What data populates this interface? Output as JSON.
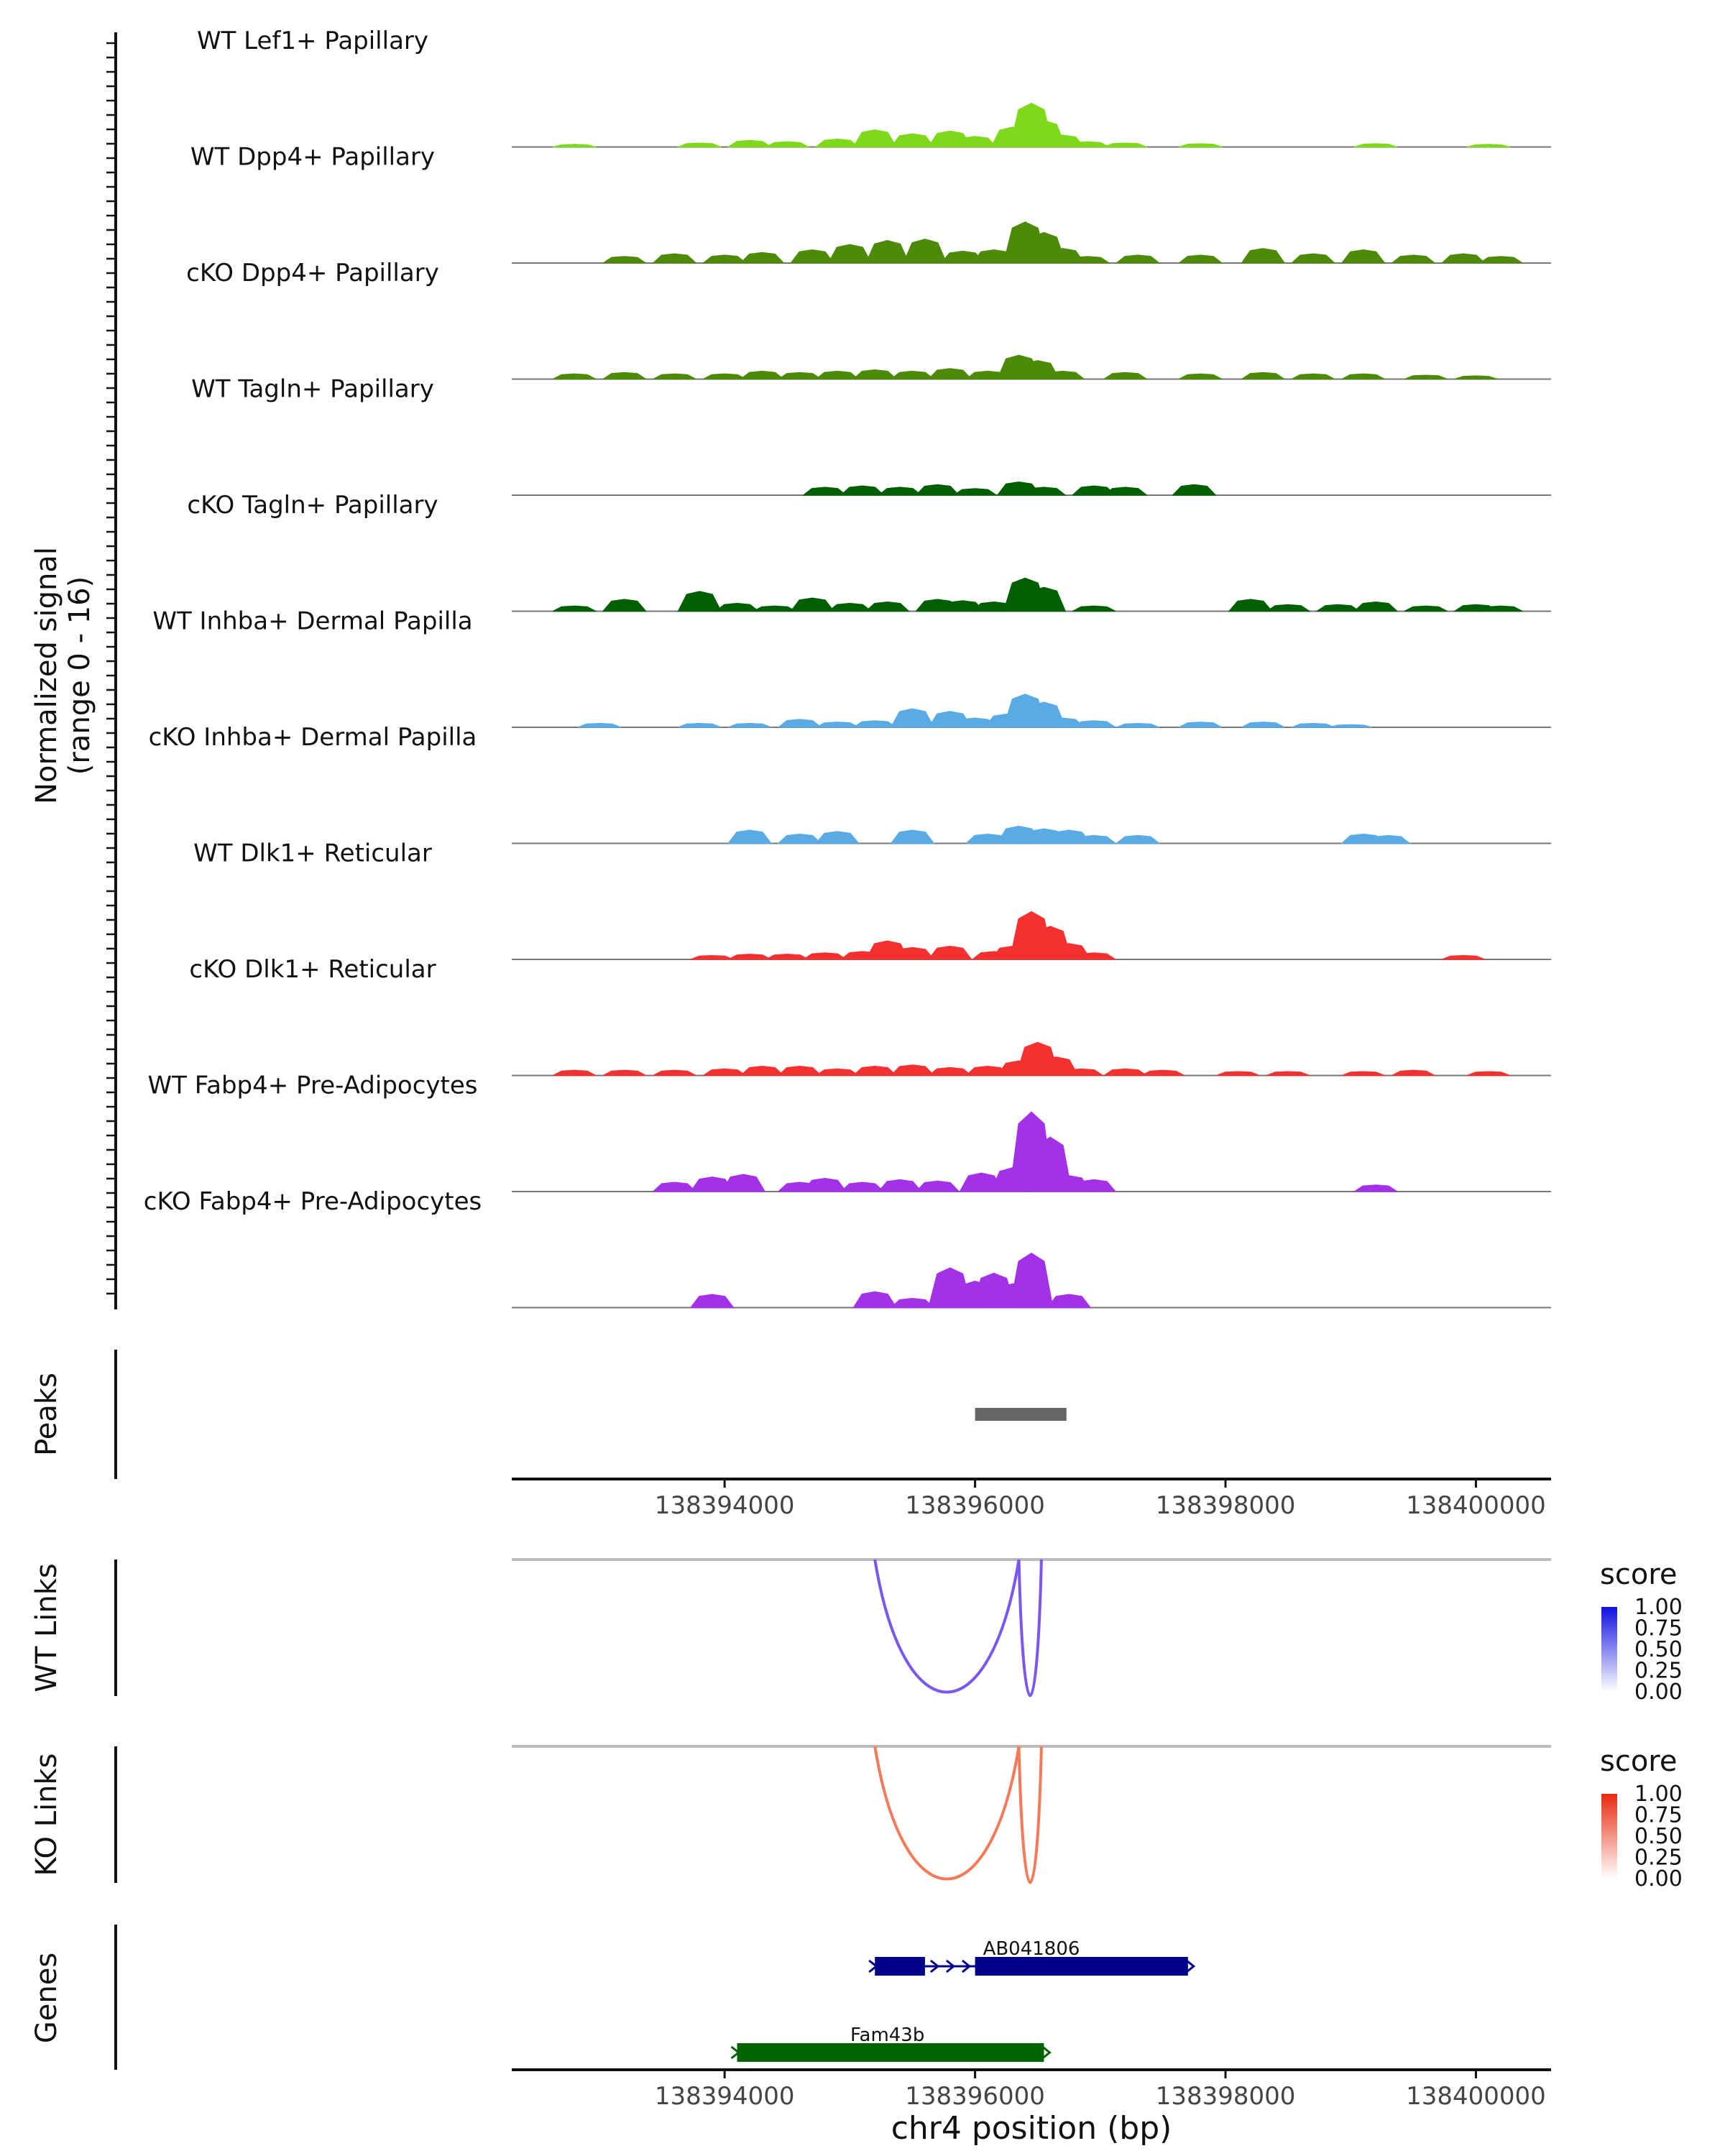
{
  "chart_data": {
    "type": "area",
    "title": "",
    "genome": {
      "chromosome": "chr4",
      "xlim": [
        138392300,
        138400600
      ],
      "xlabel": "chr4 position (bp)",
      "ticks": [
        138394000,
        138396000,
        138398000,
        138400000
      ],
      "tick_labels": [
        "138394000",
        "138396000",
        "138398000",
        "138400000"
      ]
    },
    "coverage": {
      "ylabel_line1": "Normalized signal",
      "ylabel_line2": "(range 0 - 16)",
      "ylim": [
        0,
        16
      ],
      "tracks": [
        {
          "name": "WT Lef1+ Papillary",
          "color": "#7FD91B",
          "bins": [
            [
              138392800,
              0.4
            ],
            [
              138393800,
              0.6
            ],
            [
              138394200,
              1.0
            ],
            [
              138394500,
              0.8
            ],
            [
              138394900,
              1.2
            ],
            [
              138395200,
              2.6
            ],
            [
              138395500,
              2.0
            ],
            [
              138395800,
              2.4
            ],
            [
              138396000,
              1.6
            ],
            [
              138396300,
              3.0
            ],
            [
              138396450,
              6.6
            ],
            [
              138396550,
              4.0
            ],
            [
              138396700,
              1.8
            ],
            [
              138396900,
              0.8
            ],
            [
              138397200,
              0.6
            ],
            [
              138397800,
              0.5
            ],
            [
              138399200,
              0.5
            ],
            [
              138400100,
              0.4
            ]
          ]
        },
        {
          "name": "WT Dpp4+ Papillary",
          "color": "#4E8A0A",
          "bins": [
            [
              138393200,
              1.0
            ],
            [
              138393600,
              1.4
            ],
            [
              138394000,
              1.2
            ],
            [
              138394300,
              1.6
            ],
            [
              138394700,
              2.0
            ],
            [
              138395000,
              2.8
            ],
            [
              138395300,
              3.4
            ],
            [
              138395600,
              3.6
            ],
            [
              138395900,
              1.8
            ],
            [
              138396150,
              2.0
            ],
            [
              138396400,
              6.2
            ],
            [
              138396550,
              4.6
            ],
            [
              138396700,
              2.2
            ],
            [
              138396900,
              1.0
            ],
            [
              138397300,
              1.2
            ],
            [
              138397800,
              1.2
            ],
            [
              138398300,
              2.2
            ],
            [
              138398700,
              1.4
            ],
            [
              138399100,
              2.0
            ],
            [
              138399500,
              1.2
            ],
            [
              138399900,
              1.4
            ],
            [
              138400200,
              1.0
            ]
          ]
        },
        {
          "name": "cKO Dpp4+ Papillary",
          "color": "#4E8A0A",
          "bins": [
            [
              138392800,
              0.8
            ],
            [
              138393200,
              1.0
            ],
            [
              138393600,
              0.8
            ],
            [
              138394000,
              0.8
            ],
            [
              138394300,
              1.2
            ],
            [
              138394600,
              1.0
            ],
            [
              138394900,
              1.2
            ],
            [
              138395200,
              1.4
            ],
            [
              138395500,
              1.2
            ],
            [
              138395800,
              1.6
            ],
            [
              138396100,
              1.2
            ],
            [
              138396350,
              3.6
            ],
            [
              138396500,
              2.8
            ],
            [
              138396700,
              1.2
            ],
            [
              138397200,
              1.0
            ],
            [
              138397800,
              0.8
            ],
            [
              138398300,
              1.0
            ],
            [
              138398700,
              0.8
            ],
            [
              138399100,
              0.8
            ],
            [
              138399600,
              0.6
            ],
            [
              138400000,
              0.5
            ]
          ]
        },
        {
          "name": "WT Tagln+ Papillary",
          "color": "#005F00",
          "bins": [
            [
              138394800,
              1.2
            ],
            [
              138395100,
              1.4
            ],
            [
              138395400,
              1.2
            ],
            [
              138395700,
              1.6
            ],
            [
              138396000,
              1.0
            ],
            [
              138396350,
              2.0
            ],
            [
              138396550,
              1.2
            ],
            [
              138396950,
              1.4
            ],
            [
              138397200,
              1.2
            ],
            [
              138397750,
              1.6
            ]
          ]
        },
        {
          "name": "cKO Tagln+ Papillary",
          "color": "#005F00",
          "bins": [
            [
              138392800,
              0.8
            ],
            [
              138393200,
              1.8
            ],
            [
              138393800,
              3.0
            ],
            [
              138394100,
              1.2
            ],
            [
              138394400,
              0.8
            ],
            [
              138394700,
              2.0
            ],
            [
              138395000,
              1.2
            ],
            [
              138395300,
              1.4
            ],
            [
              138395700,
              1.8
            ],
            [
              138395900,
              1.6
            ],
            [
              138396150,
              1.4
            ],
            [
              138396400,
              5.0
            ],
            [
              138396550,
              3.6
            ],
            [
              138396950,
              0.8
            ],
            [
              138398200,
              1.8
            ],
            [
              138398500,
              1.0
            ],
            [
              138398900,
              1.0
            ],
            [
              138399200,
              1.4
            ],
            [
              138399600,
              0.8
            ],
            [
              138400000,
              1.0
            ],
            [
              138400200,
              0.8
            ]
          ]
        },
        {
          "name": "WT Inhba+ Dermal Papilla",
          "color": "#5AAAE6",
          "bins": [
            [
              138393000,
              0.6
            ],
            [
              138393800,
              0.6
            ],
            [
              138394200,
              0.6
            ],
            [
              138394600,
              1.2
            ],
            [
              138394900,
              0.8
            ],
            [
              138395200,
              1.0
            ],
            [
              138395500,
              2.8
            ],
            [
              138395800,
              2.4
            ],
            [
              138396000,
              1.4
            ],
            [
              138396250,
              2.0
            ],
            [
              138396400,
              5.0
            ],
            [
              138396550,
              3.8
            ],
            [
              138396700,
              1.4
            ],
            [
              138396950,
              1.0
            ],
            [
              138397300,
              0.6
            ],
            [
              138397800,
              0.8
            ],
            [
              138398300,
              0.8
            ],
            [
              138398700,
              0.6
            ],
            [
              138399000,
              0.4
            ]
          ]
        },
        {
          "name": "cKO Inhba+ Dermal Papilla",
          "color": "#5AAAE6",
          "bins": [
            [
              138394200,
              2.0
            ],
            [
              138394600,
              1.4
            ],
            [
              138394900,
              1.8
            ],
            [
              138395500,
              2.0
            ],
            [
              138396100,
              1.4
            ],
            [
              138396350,
              2.6
            ],
            [
              138396550,
              2.2
            ],
            [
              138396750,
              2.0
            ],
            [
              138396950,
              1.2
            ],
            [
              138397300,
              1.2
            ],
            [
              138399100,
              1.4
            ],
            [
              138399300,
              1.2
            ]
          ]
        },
        {
          "name": "WT Dlk1+ Reticular",
          "color": "#F53030",
          "bins": [
            [
              138393900,
              0.6
            ],
            [
              138394200,
              0.8
            ],
            [
              138394500,
              0.8
            ],
            [
              138394800,
              1.0
            ],
            [
              138395100,
              1.2
            ],
            [
              138395300,
              2.8
            ],
            [
              138395500,
              1.8
            ],
            [
              138395800,
              2.0
            ],
            [
              138396150,
              1.2
            ],
            [
              138396300,
              2.0
            ],
            [
              138396450,
              7.2
            ],
            [
              138396600,
              5.0
            ],
            [
              138396750,
              2.4
            ],
            [
              138396950,
              1.0
            ],
            [
              138399900,
              0.6
            ]
          ]
        },
        {
          "name": "cKO Dlk1+ Reticular",
          "color": "#F53030",
          "bins": [
            [
              138392800,
              0.8
            ],
            [
              138393200,
              0.8
            ],
            [
              138393600,
              0.8
            ],
            [
              138394000,
              1.0
            ],
            [
              138394300,
              1.4
            ],
            [
              138394600,
              1.4
            ],
            [
              138394900,
              1.0
            ],
            [
              138395200,
              1.4
            ],
            [
              138395500,
              1.6
            ],
            [
              138395800,
              1.2
            ],
            [
              138396100,
              1.4
            ],
            [
              138396350,
              2.2
            ],
            [
              138396500,
              5.0
            ],
            [
              138396650,
              2.8
            ],
            [
              138396850,
              1.0
            ],
            [
              138397200,
              1.0
            ],
            [
              138397500,
              0.8
            ],
            [
              138398100,
              0.6
            ],
            [
              138398500,
              0.6
            ],
            [
              138399100,
              0.6
            ],
            [
              138399500,
              0.8
            ],
            [
              138400100,
              0.6
            ]
          ]
        },
        {
          "name": "WT Fabp4+ Pre-Adipocytes",
          "color": "#A331E8",
          "bins": [
            [
              138393600,
              1.4
            ],
            [
              138393900,
              2.2
            ],
            [
              138394150,
              2.6
            ],
            [
              138394600,
              1.4
            ],
            [
              138394800,
              2.0
            ],
            [
              138395100,
              1.4
            ],
            [
              138395400,
              1.8
            ],
            [
              138395700,
              1.6
            ],
            [
              138396050,
              2.8
            ],
            [
              138396300,
              3.6
            ],
            [
              138396450,
              12.0
            ],
            [
              138396600,
              8.2
            ],
            [
              138396750,
              2.4
            ],
            [
              138396950,
              1.8
            ],
            [
              138399200,
              1.0
            ]
          ]
        },
        {
          "name": "cKO Fabp4+ Pre-Adipocytes",
          "color": "#A331E8",
          "bins": [
            [
              138393900,
              2.0
            ],
            [
              138395200,
              2.4
            ],
            [
              138395500,
              1.4
            ],
            [
              138395800,
              6.0
            ],
            [
              138396000,
              4.0
            ],
            [
              138396150,
              5.2
            ],
            [
              138396300,
              3.6
            ],
            [
              138396450,
              8.2
            ],
            [
              138396750,
              2.0
            ]
          ]
        }
      ]
    },
    "peaks": {
      "label": "Peaks",
      "ranges": [
        [
          138396000,
          138396730
        ]
      ],
      "color": "#666666"
    },
    "links": [
      {
        "label": "WT Links",
        "legend_title": "score",
        "color": "#7B57F0",
        "scale_colors": [
          "#ffffff",
          "#1010E0"
        ],
        "arcs": [
          [
            138395200,
            138396350,
            0.83
          ],
          [
            138396350,
            138396530,
            0.83
          ]
        ]
      },
      {
        "label": "KO Links",
        "legend_title": "score",
        "color": "#F47A5A",
        "scale_colors": [
          "#ffffff",
          "#E82A10"
        ],
        "arcs": [
          [
            138395200,
            138396350,
            0.72
          ],
          [
            138396350,
            138396530,
            0.72
          ]
        ]
      }
    ],
    "legend_ticks": [
      "1.00",
      "0.75",
      "0.50",
      "0.25",
      "0.00"
    ],
    "genes": {
      "label": "Genes",
      "items": [
        {
          "name": "AB041806",
          "strand": "+",
          "color": "#00008B",
          "start": 138395200,
          "end": 138397700,
          "exons": [
            [
              138395200,
              138395600
            ],
            [
              138396000,
              138397700
            ]
          ]
        },
        {
          "name": "Fam43b",
          "strand": "+",
          "color": "#006400",
          "start": 138394100,
          "end": 138396550,
          "exons": [
            [
              138394100,
              138396550
            ]
          ]
        }
      ]
    }
  }
}
